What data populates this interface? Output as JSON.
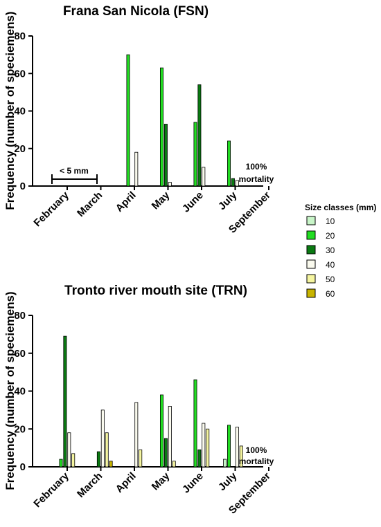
{
  "chart_data": [
    {
      "type": "bar",
      "title": "Frana San Nicola (FSN)",
      "ylabel": "Frequency (number of speciemens)",
      "xlabel": "",
      "ylim": [
        0,
        80
      ],
      "yticks": [
        0,
        20,
        40,
        60,
        80
      ],
      "categories": [
        "February",
        "March",
        "April",
        "May",
        "June",
        "July",
        "September"
      ],
      "series": [
        {
          "name": "10",
          "values": [
            0,
            0,
            0,
            0,
            0,
            0,
            0
          ]
        },
        {
          "name": "20",
          "values": [
            0,
            0,
            70,
            63,
            34,
            24,
            0
          ]
        },
        {
          "name": "30",
          "values": [
            0,
            0,
            0,
            33,
            54,
            4,
            0
          ]
        },
        {
          "name": "40",
          "values": [
            0,
            0,
            18,
            2,
            10,
            3,
            0
          ]
        },
        {
          "name": "50",
          "values": [
            0,
            0,
            0,
            0,
            0,
            0,
            0
          ]
        },
        {
          "name": "60",
          "values": [
            0,
            0,
            0,
            0,
            0,
            0,
            0
          ]
        }
      ],
      "annotations": [
        {
          "text": "< 5 mm",
          "span": [
            "February",
            "March"
          ]
        },
        {
          "text_lines": [
            "100%",
            "mortality"
          ],
          "category": "September"
        }
      ],
      "grid": false
    },
    {
      "type": "bar",
      "title": "Tronto river mouth site (TRN)",
      "ylabel": "Frequency (number of speciemens)",
      "xlabel": "",
      "ylim": [
        0,
        80
      ],
      "yticks": [
        0,
        20,
        40,
        60,
        80
      ],
      "categories": [
        "February",
        "March",
        "April",
        "May",
        "June",
        "July",
        "September"
      ],
      "series": [
        {
          "name": "10",
          "values": [
            0,
            0,
            0,
            0,
            0,
            4,
            0
          ]
        },
        {
          "name": "20",
          "values": [
            4,
            0,
            0,
            38,
            46,
            22,
            0
          ]
        },
        {
          "name": "30",
          "values": [
            69,
            8,
            0,
            15,
            9,
            0,
            0
          ]
        },
        {
          "name": "40",
          "values": [
            18,
            30,
            34,
            32,
            23,
            21,
            0
          ]
        },
        {
          "name": "50",
          "values": [
            7,
            18,
            9,
            3,
            20,
            11,
            0
          ]
        },
        {
          "name": "60",
          "values": [
            0,
            3,
            0,
            0,
            0,
            0,
            0
          ]
        }
      ],
      "annotations": [
        {
          "text_lines": [
            "100%",
            "mortality"
          ],
          "category": "September"
        }
      ],
      "grid": false
    }
  ],
  "legend": {
    "title": "Size classes (mm)",
    "placement": "right",
    "items": [
      {
        "label": "10",
        "color": "#c8f5c8"
      },
      {
        "label": "20",
        "color": "#22dd22"
      },
      {
        "label": "30",
        "color": "#0a7a12"
      },
      {
        "label": "40",
        "color": "#fafaee"
      },
      {
        "label": "50",
        "color": "#f5f5a0"
      },
      {
        "label": "60",
        "color": "#c8b400"
      }
    ]
  }
}
